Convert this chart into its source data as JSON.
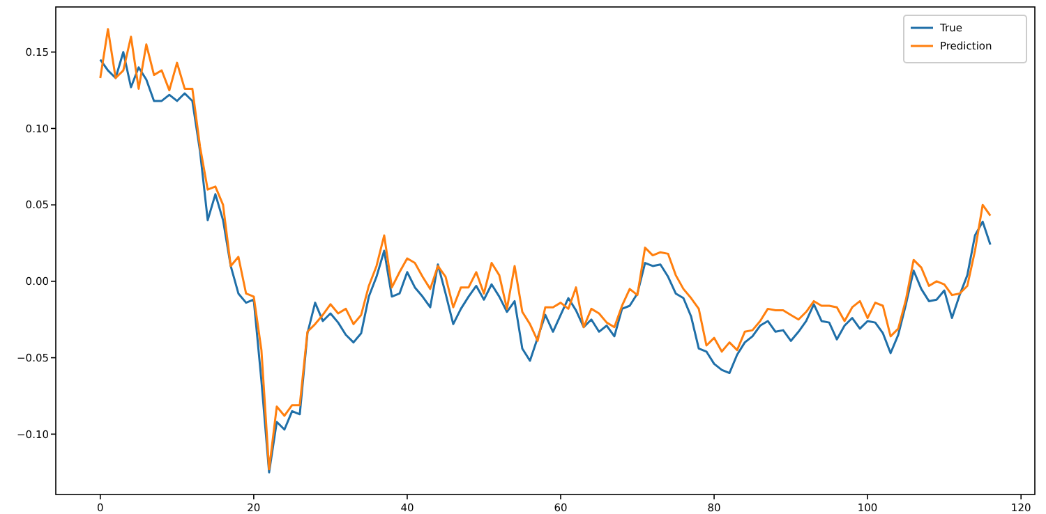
{
  "chart_data": {
    "type": "line",
    "x": [
      0,
      1,
      2,
      3,
      4,
      5,
      6,
      7,
      8,
      9,
      10,
      11,
      12,
      13,
      14,
      15,
      16,
      17,
      18,
      19,
      20,
      21,
      22,
      23,
      24,
      25,
      26,
      27,
      28,
      29,
      30,
      31,
      32,
      33,
      34,
      35,
      36,
      37,
      38,
      39,
      40,
      41,
      42,
      43,
      44,
      45,
      46,
      47,
      48,
      49,
      50,
      51,
      52,
      53,
      54,
      55,
      56,
      57,
      58,
      59,
      60,
      61,
      62,
      63,
      64,
      65,
      66,
      67,
      68,
      69,
      70,
      71,
      72,
      73,
      74,
      75,
      76,
      77,
      78,
      79,
      80,
      81,
      82,
      83,
      84,
      85,
      86,
      87,
      88,
      89,
      90,
      91,
      92,
      93,
      94,
      95,
      96,
      97,
      98,
      99,
      100,
      101,
      102,
      103,
      104,
      105,
      106,
      107,
      108,
      109,
      110,
      111,
      112,
      113,
      114,
      115,
      116
    ],
    "series": [
      {
        "name": "True",
        "color": "#1f6fa8",
        "values": [
          0.145,
          0.138,
          0.133,
          0.15,
          0.127,
          0.14,
          0.132,
          0.118,
          0.118,
          0.122,
          0.118,
          0.123,
          0.118,
          0.085,
          0.04,
          0.057,
          0.04,
          0.01,
          -0.008,
          -0.014,
          -0.012,
          -0.065,
          -0.125,
          -0.092,
          -0.097,
          -0.085,
          -0.087,
          -0.034,
          -0.014,
          -0.026,
          -0.021,
          -0.027,
          -0.035,
          -0.04,
          -0.034,
          -0.01,
          0.003,
          0.02,
          -0.01,
          -0.008,
          0.006,
          -0.004,
          -0.01,
          -0.017,
          0.011,
          -0.008,
          -0.028,
          -0.018,
          -0.01,
          -0.003,
          -0.012,
          -0.002,
          -0.01,
          -0.02,
          -0.013,
          -0.044,
          -0.052,
          -0.037,
          -0.022,
          -0.033,
          -0.022,
          -0.011,
          -0.019,
          -0.03,
          -0.025,
          -0.033,
          -0.029,
          -0.036,
          -0.018,
          -0.016,
          -0.008,
          0.012,
          0.01,
          0.011,
          0.003,
          -0.008,
          -0.011,
          -0.023,
          -0.044,
          -0.046,
          -0.054,
          -0.058,
          -0.06,
          -0.048,
          -0.04,
          -0.036,
          -0.029,
          -0.026,
          -0.033,
          -0.032,
          -0.039,
          -0.033,
          -0.026,
          -0.015,
          -0.026,
          -0.027,
          -0.038,
          -0.029,
          -0.024,
          -0.031,
          -0.026,
          -0.027,
          -0.034,
          -0.047,
          -0.035,
          -0.015,
          0.007,
          -0.005,
          -0.013,
          -0.012,
          -0.006,
          -0.024,
          -0.009,
          0.004,
          0.03,
          0.039,
          0.024
        ]
      },
      {
        "name": "Prediction",
        "color": "#ff7f0e",
        "values": [
          0.133,
          0.165,
          0.133,
          0.138,
          0.16,
          0.126,
          0.155,
          0.135,
          0.138,
          0.125,
          0.143,
          0.126,
          0.126,
          0.088,
          0.06,
          0.062,
          0.05,
          0.01,
          0.016,
          -0.008,
          -0.01,
          -0.045,
          -0.123,
          -0.082,
          -0.088,
          -0.081,
          -0.081,
          -0.033,
          -0.028,
          -0.022,
          -0.015,
          -0.021,
          -0.018,
          -0.028,
          -0.022,
          -0.003,
          0.01,
          0.03,
          -0.004,
          0.006,
          0.015,
          0.012,
          0.003,
          -0.005,
          0.01,
          0.003,
          -0.017,
          -0.004,
          -0.004,
          0.006,
          -0.008,
          0.012,
          0.004,
          -0.018,
          0.01,
          -0.02,
          -0.028,
          -0.039,
          -0.017,
          -0.017,
          -0.014,
          -0.018,
          -0.004,
          -0.03,
          -0.018,
          -0.021,
          -0.027,
          -0.03,
          -0.016,
          -0.005,
          -0.009,
          0.022,
          0.017,
          0.019,
          0.018,
          0.004,
          -0.005,
          -0.011,
          -0.018,
          -0.042,
          -0.037,
          -0.046,
          -0.04,
          -0.045,
          -0.033,
          -0.032,
          -0.026,
          -0.018,
          -0.019,
          -0.019,
          -0.022,
          -0.025,
          -0.02,
          -0.013,
          -0.016,
          -0.016,
          -0.017,
          -0.026,
          -0.017,
          -0.013,
          -0.024,
          -0.014,
          -0.016,
          -0.036,
          -0.031,
          -0.012,
          0.014,
          0.009,
          -0.003,
          0.0,
          -0.002,
          -0.009,
          -0.008,
          -0.003,
          0.02,
          0.05,
          0.043
        ]
      }
    ],
    "xlim": [
      -5.8,
      121.8
    ],
    "ylim": [
      -0.1395,
      0.1795
    ],
    "xticks": [
      0,
      20,
      40,
      60,
      80,
      100,
      120
    ],
    "yticks": [
      {
        "value": -0.1,
        "label": "−0.10"
      },
      {
        "value": -0.05,
        "label": "−0.05"
      },
      {
        "value": 0,
        "label": "0.00"
      },
      {
        "value": 0.05,
        "label": "0.05"
      },
      {
        "value": 0.1,
        "label": "0.10"
      },
      {
        "value": 0.15,
        "label": "0.15"
      }
    ],
    "legend": "top right",
    "grid": false,
    "line_style": "solid",
    "marker": "none"
  }
}
